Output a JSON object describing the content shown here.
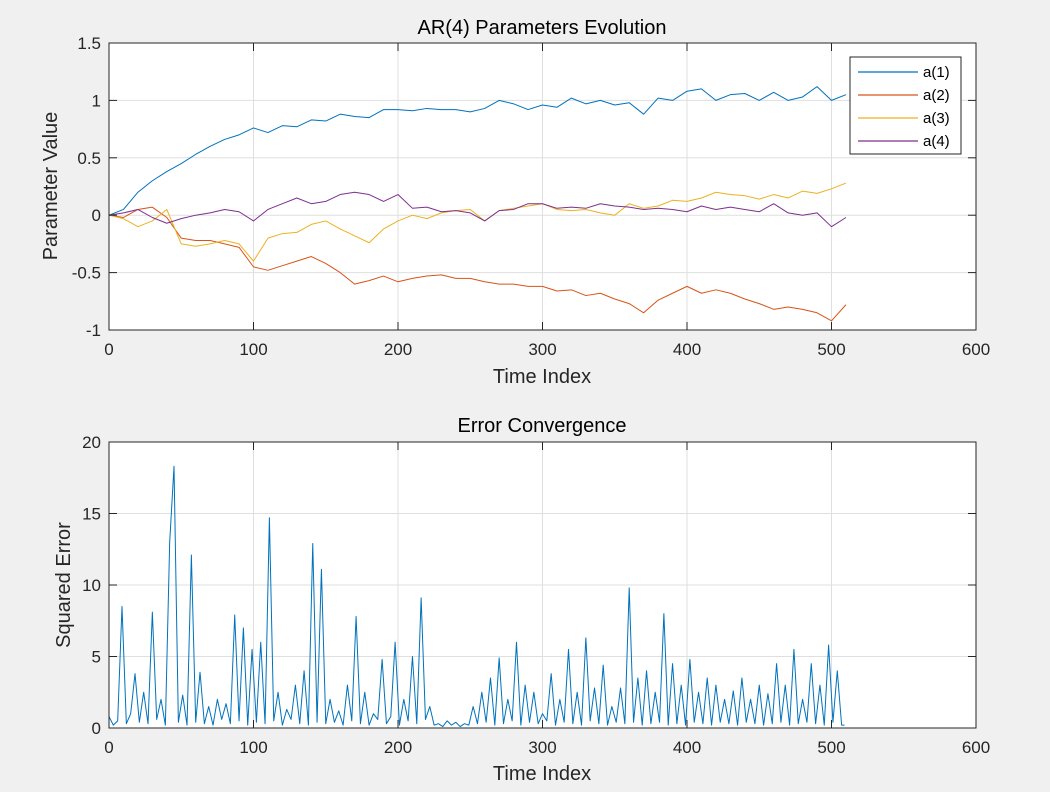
{
  "window": {
    "background": "#f0f0f0"
  },
  "chart_data": [
    {
      "type": "line",
      "title": "AR(4) Parameters Evolution",
      "xlabel": "Time Index",
      "ylabel": "Parameter Value",
      "xlim": [
        0,
        600
      ],
      "ylim": [
        -1,
        1.5
      ],
      "xticks": [
        0,
        100,
        200,
        300,
        400,
        500,
        600
      ],
      "yticks": [
        -1,
        -0.5,
        0,
        0.5,
        1,
        1.5
      ],
      "xtick_labels": [
        "0",
        "100",
        "200",
        "300",
        "400",
        "500",
        "600"
      ],
      "ytick_labels": [
        "-1",
        "-0.5",
        "0",
        "0.5",
        "1",
        "1.5"
      ],
      "grid": true,
      "legend_position": "top-right",
      "series": [
        {
          "name": "a(1)",
          "color": "#0072BD",
          "x": [
            0,
            10,
            20,
            30,
            40,
            50,
            60,
            70,
            80,
            90,
            100,
            110,
            120,
            130,
            140,
            150,
            160,
            170,
            180,
            190,
            200,
            210,
            220,
            230,
            240,
            250,
            260,
            270,
            280,
            290,
            300,
            310,
            320,
            330,
            340,
            350,
            360,
            370,
            380,
            390,
            400,
            410,
            420,
            430,
            440,
            450,
            460,
            470,
            480,
            490,
            500,
            510
          ],
          "values": [
            0,
            0.05,
            0.2,
            0.3,
            0.38,
            0.45,
            0.53,
            0.6,
            0.66,
            0.7,
            0.76,
            0.72,
            0.78,
            0.77,
            0.83,
            0.82,
            0.88,
            0.86,
            0.85,
            0.92,
            0.92,
            0.91,
            0.93,
            0.92,
            0.92,
            0.9,
            0.93,
            1.0,
            0.97,
            0.92,
            0.96,
            0.94,
            1.02,
            0.97,
            1.0,
            0.96,
            0.98,
            0.88,
            1.02,
            1.0,
            1.08,
            1.1,
            1.0,
            1.05,
            1.06,
            1.0,
            1.07,
            1.0,
            1.03,
            1.12,
            1.0,
            1.05
          ]
        },
        {
          "name": "a(2)",
          "color": "#D95319",
          "x": [
            0,
            10,
            20,
            30,
            40,
            50,
            60,
            70,
            80,
            90,
            100,
            110,
            120,
            130,
            140,
            150,
            160,
            170,
            180,
            190,
            200,
            210,
            220,
            230,
            240,
            250,
            260,
            270,
            280,
            290,
            300,
            310,
            320,
            330,
            340,
            350,
            360,
            370,
            380,
            390,
            400,
            410,
            420,
            430,
            440,
            450,
            460,
            470,
            480,
            490,
            500,
            510
          ],
          "values": [
            0,
            -0.02,
            0.05,
            0.07,
            -0.02,
            -0.2,
            -0.22,
            -0.22,
            -0.25,
            -0.28,
            -0.45,
            -0.48,
            -0.44,
            -0.4,
            -0.36,
            -0.42,
            -0.5,
            -0.6,
            -0.57,
            -0.53,
            -0.58,
            -0.55,
            -0.53,
            -0.52,
            -0.55,
            -0.55,
            -0.58,
            -0.6,
            -0.6,
            -0.62,
            -0.62,
            -0.66,
            -0.65,
            -0.7,
            -0.68,
            -0.73,
            -0.77,
            -0.85,
            -0.74,
            -0.68,
            -0.62,
            -0.68,
            -0.65,
            -0.68,
            -0.73,
            -0.77,
            -0.82,
            -0.8,
            -0.82,
            -0.85,
            -0.92,
            -0.78
          ]
        },
        {
          "name": "a(3)",
          "color": "#EDB120",
          "x": [
            0,
            10,
            20,
            30,
            40,
            50,
            60,
            70,
            80,
            90,
            100,
            110,
            120,
            130,
            140,
            150,
            160,
            170,
            180,
            190,
            200,
            210,
            220,
            230,
            240,
            250,
            260,
            270,
            280,
            290,
            300,
            310,
            320,
            330,
            340,
            350,
            360,
            370,
            380,
            390,
            400,
            410,
            420,
            430,
            440,
            450,
            460,
            470,
            480,
            490,
            500,
            510
          ],
          "values": [
            0,
            -0.03,
            -0.1,
            -0.05,
            0.05,
            -0.25,
            -0.27,
            -0.25,
            -0.22,
            -0.25,
            -0.4,
            -0.2,
            -0.16,
            -0.15,
            -0.08,
            -0.05,
            -0.12,
            -0.18,
            -0.24,
            -0.12,
            -0.05,
            0.0,
            -0.03,
            0.02,
            0.04,
            0.05,
            -0.05,
            0.04,
            0.06,
            0.08,
            0.1,
            0.05,
            0.04,
            0.05,
            0.02,
            0.0,
            0.1,
            0.06,
            0.08,
            0.13,
            0.12,
            0.15,
            0.2,
            0.18,
            0.17,
            0.14,
            0.18,
            0.15,
            0.21,
            0.19,
            0.23,
            0.28
          ]
        },
        {
          "name": "a(4)",
          "color": "#7E2F8E",
          "x": [
            0,
            10,
            20,
            30,
            40,
            50,
            60,
            70,
            80,
            90,
            100,
            110,
            120,
            130,
            140,
            150,
            160,
            170,
            180,
            190,
            200,
            210,
            220,
            230,
            240,
            250,
            260,
            270,
            280,
            290,
            300,
            310,
            320,
            330,
            340,
            350,
            360,
            370,
            380,
            390,
            400,
            410,
            420,
            430,
            440,
            450,
            460,
            470,
            480,
            490,
            500,
            510
          ],
          "values": [
            0,
            0.02,
            0.05,
            -0.02,
            -0.07,
            -0.03,
            0.0,
            0.02,
            0.05,
            0.03,
            -0.05,
            0.05,
            0.1,
            0.15,
            0.1,
            0.12,
            0.18,
            0.2,
            0.18,
            0.12,
            0.18,
            0.06,
            0.07,
            0.03,
            0.04,
            0.02,
            -0.05,
            0.04,
            0.05,
            0.1,
            0.1,
            0.06,
            0.07,
            0.06,
            0.1,
            0.08,
            0.07,
            0.05,
            0.06,
            0.05,
            0.03,
            0.08,
            0.05,
            0.07,
            0.05,
            0.03,
            0.1,
            0.02,
            0.0,
            0.02,
            -0.1,
            -0.02
          ]
        }
      ]
    },
    {
      "type": "line",
      "title": "Error Convergence",
      "xlabel": "Time Index",
      "ylabel": "Squared Error",
      "xlim": [
        0,
        600
      ],
      "ylim": [
        0,
        20
      ],
      "xticks": [
        0,
        100,
        200,
        300,
        400,
        500,
        600
      ],
      "yticks": [
        0,
        5,
        10,
        15,
        20
      ],
      "xtick_labels": [
        "0",
        "100",
        "200",
        "300",
        "400",
        "500",
        "600"
      ],
      "ytick_labels": [
        "0",
        "5",
        "10",
        "15",
        "20"
      ],
      "grid": true,
      "series": [
        {
          "color": "#0072BD",
          "x": [
            0,
            3,
            6,
            9,
            12,
            15,
            18,
            21,
            24,
            27,
            30,
            33,
            36,
            39,
            42,
            45,
            48,
            51,
            54,
            57,
            60,
            63,
            66,
            69,
            72,
            75,
            78,
            81,
            84,
            87,
            90,
            93,
            96,
            99,
            102,
            105,
            108,
            111,
            114,
            117,
            120,
            123,
            126,
            129,
            132,
            135,
            138,
            141,
            144,
            147,
            150,
            153,
            156,
            159,
            162,
            165,
            168,
            171,
            174,
            177,
            180,
            183,
            186,
            189,
            192,
            195,
            198,
            201,
            204,
            207,
            210,
            213,
            216,
            219,
            222,
            225,
            228,
            231,
            234,
            237,
            240,
            243,
            246,
            249,
            252,
            255,
            258,
            261,
            264,
            267,
            270,
            273,
            276,
            279,
            282,
            285,
            288,
            291,
            294,
            297,
            300,
            303,
            306,
            309,
            312,
            315,
            318,
            321,
            324,
            327,
            330,
            333,
            336,
            339,
            342,
            345,
            348,
            351,
            354,
            357,
            360,
            363,
            366,
            369,
            372,
            375,
            378,
            381,
            384,
            387,
            390,
            393,
            396,
            399,
            402,
            405,
            408,
            411,
            414,
            417,
            420,
            423,
            426,
            429,
            432,
            435,
            438,
            441,
            444,
            447,
            450,
            453,
            456,
            459,
            462,
            465,
            468,
            471,
            474,
            477,
            480,
            483,
            486,
            489,
            492,
            495,
            498,
            501,
            504,
            507,
            509
          ],
          "values": [
            0.8,
            0.2,
            0.5,
            8.5,
            0.3,
            1.0,
            3.8,
            0.4,
            2.5,
            0.3,
            8.1,
            0.6,
            2.0,
            0.2,
            13.0,
            18.3,
            0.4,
            2.3,
            0.2,
            12.1,
            0.4,
            3.9,
            0.3,
            1.5,
            0.2,
            2.0,
            0.6,
            1.7,
            0.3,
            7.9,
            0.5,
            7.0,
            0.2,
            5.5,
            0.4,
            6.0,
            0.3,
            14.7,
            0.5,
            2.5,
            0.2,
            1.3,
            0.6,
            3.0,
            0.3,
            4.0,
            0.2,
            12.9,
            0.4,
            11.1,
            0.3,
            2.0,
            0.4,
            1.2,
            0.2,
            3.0,
            0.5,
            7.8,
            0.3,
            2.5,
            0.2,
            1.0,
            0.6,
            4.8,
            0.3,
            0.8,
            6.0,
            0.2,
            2.0,
            0.5,
            5.0,
            0.3,
            9.1,
            0.6,
            1.5,
            0.2,
            0.3,
            0.1,
            0.5,
            0.2,
            0.4,
            0.1,
            0.3,
            0.2,
            1.5,
            0.3,
            2.5,
            0.4,
            3.5,
            0.2,
            4.9,
            0.3,
            2.0,
            0.5,
            6.0,
            0.2,
            3.0,
            0.4,
            2.5,
            0.3,
            1.0,
            0.5,
            3.8,
            0.2,
            2.0,
            0.4,
            5.5,
            0.3,
            2.5,
            0.2,
            6.3,
            0.5,
            2.8,
            0.3,
            4.4,
            0.2,
            1.5,
            0.4,
            2.8,
            0.3,
            9.8,
            0.4,
            3.5,
            0.2,
            4.0,
            0.3,
            2.5,
            0.4,
            8.0,
            0.2,
            4.5,
            0.3,
            3.0,
            0.2,
            4.8,
            0.4,
            2.5,
            0.3,
            3.5,
            0.2,
            3.0,
            0.4,
            2.0,
            0.3,
            2.6,
            0.2,
            3.5,
            0.4,
            2.0,
            0.3,
            3.0,
            0.2,
            2.4,
            0.3,
            4.5,
            0.4,
            3.0,
            0.2,
            5.5,
            0.3,
            2.0,
            0.4,
            4.5,
            0.3,
            3.0,
            0.2,
            5.8,
            0.4,
            4.0,
            0.2,
            0.2
          ]
        }
      ]
    }
  ]
}
